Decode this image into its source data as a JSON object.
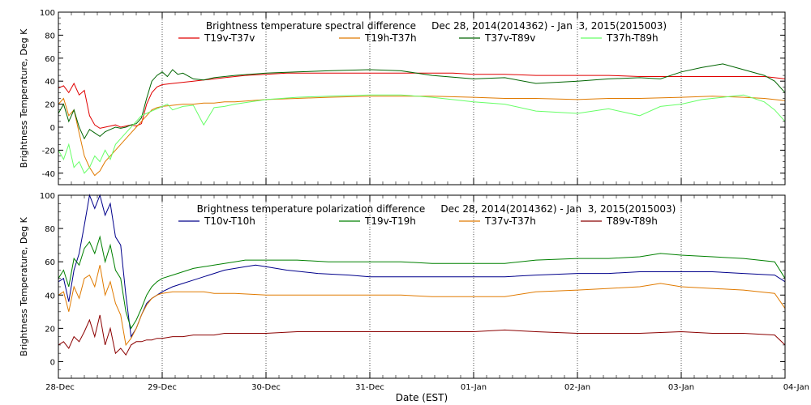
{
  "chart_data": [
    {
      "type": "line",
      "title": "Brightness temperature spectral difference     Dec 28, 2014(2014362) - Jan  3, 2015(2015003)",
      "ylabel": "Brightness Temperature, Deg K",
      "xlabel": "",
      "ylim": [
        -50,
        100
      ],
      "xlim": [
        0,
        7
      ],
      "yticks": [
        -40,
        -20,
        0,
        20,
        40,
        60,
        80,
        100
      ],
      "grid": "vertical-dotted",
      "legend_position": "top",
      "series": [
        {
          "name": "T19v-T37v",
          "color": "#e00000",
          "x": [
            0,
            0.05,
            0.1,
            0.15,
            0.2,
            0.25,
            0.3,
            0.35,
            0.4,
            0.45,
            0.5,
            0.55,
            0.6,
            0.65,
            0.7,
            0.75,
            0.8,
            0.85,
            0.9,
            0.95,
            1.0,
            1.1,
            1.2,
            1.3,
            1.4,
            1.5,
            1.6,
            1.7,
            1.8,
            2.0,
            2.2,
            2.5,
            2.8,
            3.0,
            3.2,
            3.5,
            3.8,
            4.0,
            4.3,
            4.6,
            5.0,
            5.3,
            5.6,
            6.0,
            6.3,
            6.6,
            6.8,
            6.9,
            7.0
          ],
          "y": [
            34,
            36,
            30,
            38,
            28,
            32,
            10,
            2,
            -1,
            0,
            1,
            2,
            0,
            1,
            2,
            1,
            3,
            20,
            30,
            35,
            37,
            38,
            39,
            40,
            41,
            42,
            43,
            44,
            45,
            46,
            47,
            47,
            47,
            47,
            47,
            47,
            47,
            46,
            46,
            45,
            45,
            45,
            44,
            44,
            44,
            44,
            44,
            43,
            42
          ]
        },
        {
          "name": "T19h-T37h",
          "color": "#e07a00",
          "x": [
            0,
            0.05,
            0.1,
            0.15,
            0.2,
            0.25,
            0.3,
            0.35,
            0.4,
            0.45,
            0.5,
            0.55,
            0.6,
            0.65,
            0.7,
            0.75,
            0.8,
            0.85,
            0.9,
            0.95,
            1.0,
            1.1,
            1.2,
            1.3,
            1.4,
            1.5,
            1.6,
            1.7,
            2.0,
            2.3,
            2.6,
            3.0,
            3.3,
            3.6,
            4.0,
            4.3,
            4.6,
            5.0,
            5.3,
            5.6,
            6.0,
            6.3,
            6.6,
            6.8,
            7.0
          ],
          "y": [
            20,
            25,
            10,
            15,
            -5,
            -25,
            -35,
            -42,
            -38,
            -30,
            -25,
            -20,
            -15,
            -10,
            -5,
            0,
            5,
            10,
            15,
            17,
            18,
            19,
            20,
            20,
            21,
            21,
            22,
            22,
            24,
            25,
            26,
            27,
            27,
            27,
            26,
            25,
            25,
            24,
            25,
            25,
            26,
            27,
            26,
            25,
            23
          ]
        },
        {
          "name": "T37v-T89v",
          "color": "#006400",
          "x": [
            0,
            0.05,
            0.1,
            0.15,
            0.2,
            0.25,
            0.3,
            0.35,
            0.4,
            0.45,
            0.5,
            0.55,
            0.6,
            0.65,
            0.7,
            0.75,
            0.8,
            0.85,
            0.9,
            0.95,
            1.0,
            1.05,
            1.1,
            1.15,
            1.2,
            1.3,
            1.4,
            1.5,
            1.6,
            1.7,
            2.0,
            2.3,
            2.6,
            3.0,
            3.3,
            3.6,
            4.0,
            4.3,
            4.6,
            5.0,
            5.3,
            5.6,
            5.8,
            6.0,
            6.2,
            6.4,
            6.6,
            6.8,
            6.9,
            7.0
          ],
          "y": [
            12,
            20,
            5,
            15,
            0,
            -10,
            -2,
            -5,
            -8,
            -4,
            -2,
            0,
            -1,
            0,
            2,
            3,
            8,
            25,
            40,
            45,
            48,
            44,
            50,
            46,
            47,
            42,
            41,
            43,
            44,
            45,
            47,
            48,
            49,
            50,
            49,
            45,
            42,
            43,
            38,
            40,
            42,
            43,
            42,
            48,
            52,
            55,
            50,
            45,
            40,
            30
          ]
        },
        {
          "name": "T37h-T89h",
          "color": "#66ff66",
          "x": [
            0,
            0.05,
            0.1,
            0.15,
            0.2,
            0.25,
            0.3,
            0.35,
            0.4,
            0.45,
            0.5,
            0.55,
            0.6,
            0.65,
            0.7,
            0.75,
            0.8,
            0.85,
            0.9,
            0.95,
            1.0,
            1.05,
            1.1,
            1.2,
            1.3,
            1.4,
            1.5,
            1.6,
            1.7,
            2.0,
            2.3,
            2.6,
            3.0,
            3.3,
            3.6,
            4.0,
            4.3,
            4.6,
            5.0,
            5.3,
            5.6,
            5.8,
            6.0,
            6.2,
            6.4,
            6.6,
            6.8,
            6.9,
            7.0
          ],
          "y": [
            -20,
            -28,
            -15,
            -35,
            -30,
            -40,
            -35,
            -25,
            -30,
            -20,
            -28,
            -15,
            -10,
            -5,
            0,
            5,
            10,
            12,
            14,
            16,
            18,
            20,
            15,
            18,
            19,
            2,
            17,
            18,
            20,
            24,
            26,
            27,
            28,
            28,
            26,
            22,
            20,
            14,
            12,
            16,
            10,
            18,
            20,
            24,
            26,
            28,
            22,
            15,
            5
          ]
        }
      ]
    },
    {
      "type": "line",
      "title": "Brightness temperature polarization difference     Dec 28, 2014(2014362) - Jan  3, 2015(2015003)",
      "ylabel": "Brightness Temperature, Deg K",
      "xlabel": "Date (EST)",
      "ylim": [
        -10,
        100
      ],
      "xlim": [
        0,
        7
      ],
      "yticks": [
        0,
        20,
        40,
        60,
        80,
        100
      ],
      "xtick_labels": [
        "28-Dec",
        "29-Dec",
        "30-Dec",
        "31-Dec",
        "01-Jan",
        "02-Jan",
        "03-Jan",
        "04-Jan"
      ],
      "grid": "vertical-dotted",
      "legend_position": "top",
      "series": [
        {
          "name": "T10v-T10h",
          "color": "#00008b",
          "x": [
            0,
            0.05,
            0.1,
            0.15,
            0.2,
            0.25,
            0.3,
            0.35,
            0.4,
            0.45,
            0.5,
            0.55,
            0.6,
            0.65,
            0.7,
            0.75,
            0.8,
            0.85,
            0.9,
            0.95,
            1.0,
            1.1,
            1.2,
            1.3,
            1.4,
            1.5,
            1.6,
            1.7,
            1.8,
            1.9,
            2.0,
            2.2,
            2.5,
            2.8,
            3.0,
            3.3,
            3.6,
            4.0,
            4.3,
            4.6,
            5.0,
            5.3,
            5.6,
            6.0,
            6.3,
            6.6,
            6.9,
            7.0
          ],
          "y": [
            48,
            50,
            36,
            55,
            65,
            82,
            100,
            92,
            100,
            88,
            95,
            75,
            70,
            40,
            15,
            20,
            28,
            35,
            38,
            40,
            42,
            45,
            47,
            49,
            51,
            53,
            55,
            56,
            57,
            58,
            57,
            55,
            53,
            52,
            51,
            51,
            51,
            51,
            51,
            52,
            53,
            53,
            54,
            54,
            54,
            53,
            52,
            48
          ]
        },
        {
          "name": "T19v-T19h",
          "color": "#008000",
          "x": [
            0,
            0.05,
            0.1,
            0.15,
            0.2,
            0.25,
            0.3,
            0.35,
            0.4,
            0.45,
            0.5,
            0.55,
            0.6,
            0.65,
            0.7,
            0.75,
            0.8,
            0.85,
            0.9,
            0.95,
            1.0,
            1.1,
            1.2,
            1.3,
            1.4,
            1.5,
            1.6,
            1.7,
            1.8,
            2.0,
            2.3,
            2.6,
            3.0,
            3.3,
            3.6,
            4.0,
            4.3,
            4.6,
            5.0,
            5.3,
            5.6,
            5.8,
            6.0,
            6.3,
            6.6,
            6.9,
            7.0
          ],
          "y": [
            50,
            55,
            45,
            62,
            58,
            68,
            72,
            65,
            75,
            60,
            70,
            55,
            50,
            30,
            20,
            25,
            32,
            40,
            45,
            48,
            50,
            52,
            54,
            56,
            57,
            58,
            59,
            60,
            61,
            61,
            61,
            60,
            60,
            60,
            59,
            59,
            59,
            61,
            62,
            62,
            63,
            65,
            64,
            63,
            62,
            60,
            50
          ]
        },
        {
          "name": "T37v-T37h",
          "color": "#e07a00",
          "x": [
            0,
            0.05,
            0.1,
            0.15,
            0.2,
            0.25,
            0.3,
            0.35,
            0.4,
            0.45,
            0.5,
            0.55,
            0.6,
            0.65,
            0.7,
            0.75,
            0.8,
            0.85,
            0.9,
            0.95,
            1.0,
            1.1,
            1.2,
            1.3,
            1.4,
            1.5,
            1.6,
            1.7,
            2.0,
            2.3,
            2.6,
            3.0,
            3.3,
            3.6,
            4.0,
            4.3,
            4.6,
            5.0,
            5.3,
            5.6,
            5.8,
            6.0,
            6.3,
            6.6,
            6.9,
            7.0
          ],
          "y": [
            40,
            42,
            30,
            45,
            38,
            50,
            52,
            45,
            58,
            40,
            48,
            35,
            28,
            10,
            14,
            20,
            28,
            34,
            38,
            40,
            41,
            42,
            42,
            42,
            42,
            41,
            41,
            41,
            40,
            40,
            40,
            40,
            40,
            39,
            39,
            39,
            42,
            43,
            44,
            45,
            47,
            45,
            44,
            43,
            41,
            32
          ]
        },
        {
          "name": "T89v-T89h",
          "color": "#8b0000",
          "x": [
            0,
            0.05,
            0.1,
            0.15,
            0.2,
            0.25,
            0.3,
            0.35,
            0.4,
            0.45,
            0.5,
            0.55,
            0.6,
            0.65,
            0.7,
            0.75,
            0.8,
            0.85,
            0.9,
            0.95,
            1.0,
            1.1,
            1.2,
            1.3,
            1.4,
            1.5,
            1.6,
            1.7,
            2.0,
            2.3,
            2.6,
            3.0,
            3.3,
            3.6,
            4.0,
            4.3,
            4.6,
            5.0,
            5.3,
            5.6,
            6.0,
            6.3,
            6.6,
            6.9,
            7.0
          ],
          "y": [
            10,
            12,
            8,
            15,
            12,
            18,
            25,
            15,
            28,
            10,
            20,
            5,
            8,
            4,
            10,
            12,
            12,
            13,
            13,
            14,
            14,
            15,
            15,
            16,
            16,
            16,
            17,
            17,
            17,
            18,
            18,
            18,
            18,
            18,
            18,
            19,
            18,
            17,
            17,
            17,
            18,
            17,
            17,
            16,
            10
          ]
        }
      ]
    }
  ]
}
